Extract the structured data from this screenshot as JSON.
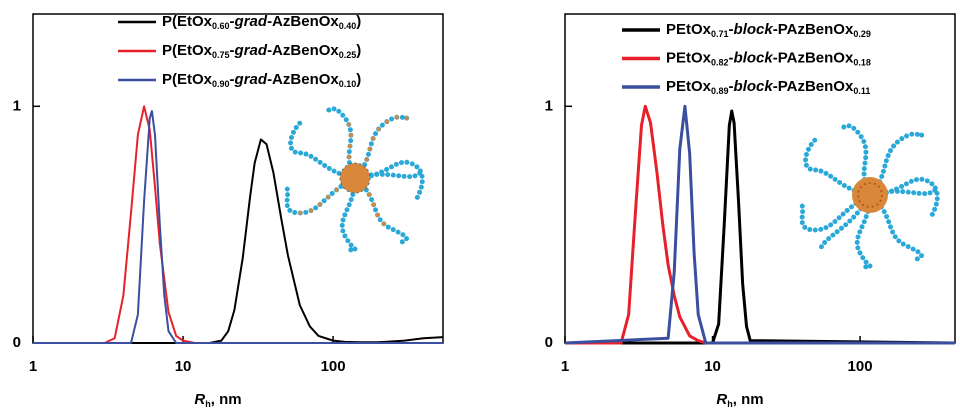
{
  "chart_data": [
    {
      "type": "line",
      "xlabel": "Rh, nm",
      "log_x": true,
      "legend": "upper center",
      "xlim": [
        1,
        540
      ],
      "xticks": [
        1,
        10,
        100
      ],
      "ylim": [
        0,
        1.39
      ],
      "yticks": [
        0,
        1
      ],
      "series": [
        {
          "name": "P(EtOx0.60-grad-AzBenOx0.40)",
          "color": "#000000",
          "x": [
            1,
            15,
            18,
            20,
            22,
            25,
            28,
            30,
            33,
            36,
            40,
            45,
            50,
            60,
            70,
            80,
            100,
            120,
            150,
            200,
            300,
            400,
            540
          ],
          "values": [
            0,
            0,
            0.01,
            0.05,
            0.14,
            0.36,
            0.62,
            0.76,
            0.86,
            0.84,
            0.72,
            0.53,
            0.37,
            0.16,
            0.07,
            0.03,
            0.01,
            0.005,
            0.003,
            0.003,
            0.01,
            0.02,
            0.025
          ]
        },
        {
          "name": "P(EtOx0.75-grad-AzBenOx0.25)",
          "color": "#e8202a",
          "x": [
            1,
            3,
            3.5,
            4,
            4.5,
            5,
            5.5,
            6,
            6.5,
            7,
            8,
            9,
            10,
            12,
            540
          ],
          "values": [
            0,
            0,
            0.02,
            0.2,
            0.55,
            0.88,
            1.0,
            0.9,
            0.66,
            0.42,
            0.13,
            0.03,
            0.01,
            0,
            0
          ]
        },
        {
          "name": "P(EtOx0.90-grad-AzBenOx0.10)",
          "color": "#3a4fa0",
          "x": [
            1,
            4.5,
            5,
            5.5,
            6,
            6.2,
            6.5,
            7,
            7.5,
            8,
            9,
            540
          ],
          "values": [
            0,
            0,
            0.12,
            0.6,
            0.95,
            0.98,
            0.88,
            0.5,
            0.2,
            0.05,
            0,
            0
          ]
        }
      ]
    },
    {
      "type": "line",
      "xlabel": "Rh, nm",
      "log_x": true,
      "legend": "upper center",
      "xlim": [
        1,
        440
      ],
      "xticks": [
        1,
        10,
        100
      ],
      "ylim": [
        0,
        1.39
      ],
      "yticks": [
        0,
        1
      ],
      "series": [
        {
          "name": "PEtOx0.71-block-PAzBenOx0.29",
          "color": "#000000",
          "x": [
            1,
            10,
            11,
            12,
            13,
            13.5,
            14,
            15,
            16,
            17,
            18,
            440
          ],
          "values": [
            0,
            0,
            0.08,
            0.5,
            0.92,
            0.98,
            0.93,
            0.6,
            0.25,
            0.07,
            0.01,
            0
          ]
        },
        {
          "name": "PEtOx0.82-block-PAzBenOx0.18",
          "color": "#e8202a",
          "x": [
            1,
            2.4,
            2.7,
            3,
            3.3,
            3.5,
            3.8,
            4.2,
            4.6,
            5,
            5.5,
            6,
            7,
            8,
            9,
            440
          ],
          "values": [
            0,
            0,
            0.12,
            0.55,
            0.92,
            1.0,
            0.93,
            0.72,
            0.5,
            0.33,
            0.2,
            0.11,
            0.03,
            0.01,
            0,
            0
          ]
        },
        {
          "name": "PEtOx0.89-block-PAzBenOx0.11",
          "color": "#3a4fa0",
          "x": [
            1,
            5,
            5.5,
            6,
            6.5,
            7,
            7.5,
            8,
            9,
            440
          ],
          "values": [
            0,
            0.02,
            0.3,
            0.82,
            1.0,
            0.8,
            0.38,
            0.12,
            0,
            0
          ]
        }
      ]
    }
  ]
}
